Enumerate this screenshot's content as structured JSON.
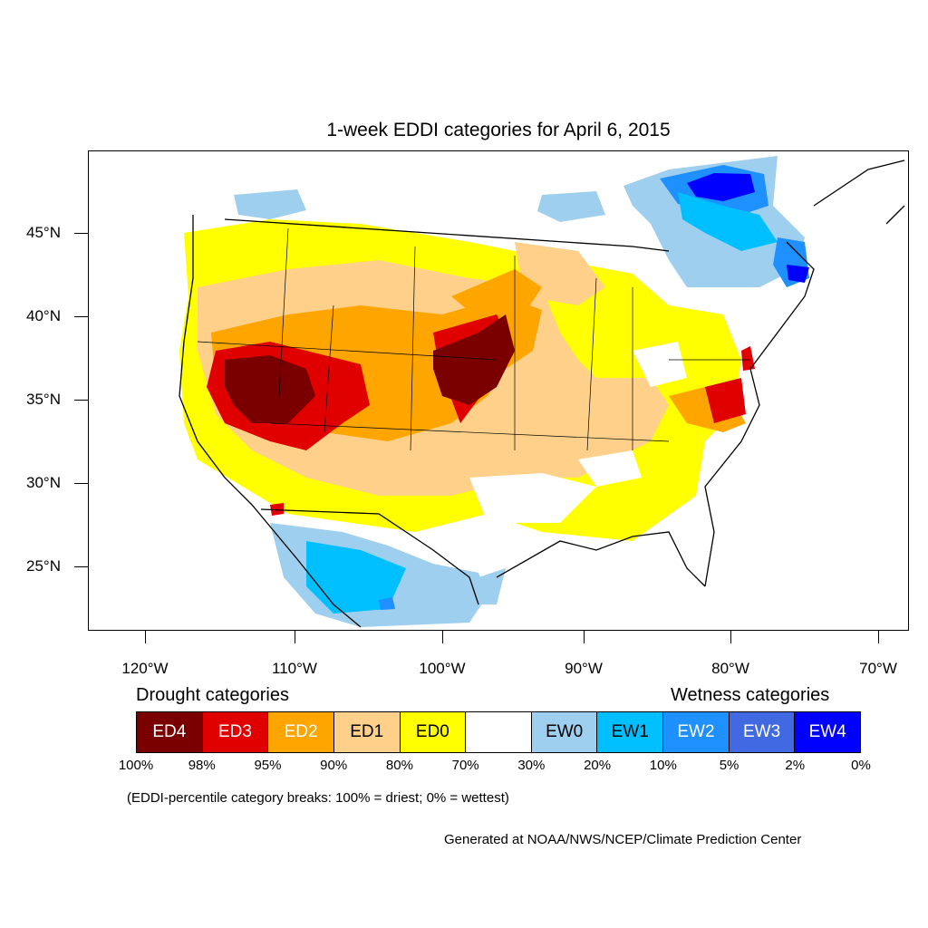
{
  "title": "1-week EDDI categories for April 6, 2015",
  "lat_labels": [
    "45°N",
    "40°N",
    "35°N",
    "30°N",
    "25°N"
  ],
  "lon_labels": [
    "120°W",
    "110°W",
    "100°W",
    "90°W",
    "80°W",
    "70°W"
  ],
  "legend": {
    "drought_title": "Drought categories",
    "wetness_title": "Wetness categories",
    "categories": [
      {
        "label": "ED4",
        "color": "#7a0000",
        "text_color": "#ffffff"
      },
      {
        "label": "ED3",
        "color": "#e00000",
        "text_color": "#ffffff"
      },
      {
        "label": "ED2",
        "color": "#ffa500",
        "text_color": "#ffffff"
      },
      {
        "label": "ED1",
        "color": "#fed08a",
        "text_color": "#000000"
      },
      {
        "label": "ED0",
        "color": "#ffff00",
        "text_color": "#000000"
      },
      {
        "label": "",
        "color": "#ffffff",
        "text_color": "#000000"
      },
      {
        "label": "EW0",
        "color": "#9fcfee",
        "text_color": "#000000"
      },
      {
        "label": "EW1",
        "color": "#00bfff",
        "text_color": "#000000"
      },
      {
        "label": "EW2",
        "color": "#1e90ff",
        "text_color": "#ffffff"
      },
      {
        "label": "EW3",
        "color": "#4169e1",
        "text_color": "#ffffff"
      },
      {
        "label": "EW4",
        "color": "#0000ff",
        "text_color": "#ffffff"
      }
    ],
    "breaks": [
      "100%",
      "98%",
      "95%",
      "90%",
      "80%",
      "70%",
      "30%",
      "20%",
      "10%",
      "5%",
      "2%",
      "0%"
    ]
  },
  "note": "(EDDI-percentile category breaks: 100% = driest; 0% = wettest)",
  "credit": "Generated at NOAA/NWS/NCEP/Climate Prediction Center"
}
